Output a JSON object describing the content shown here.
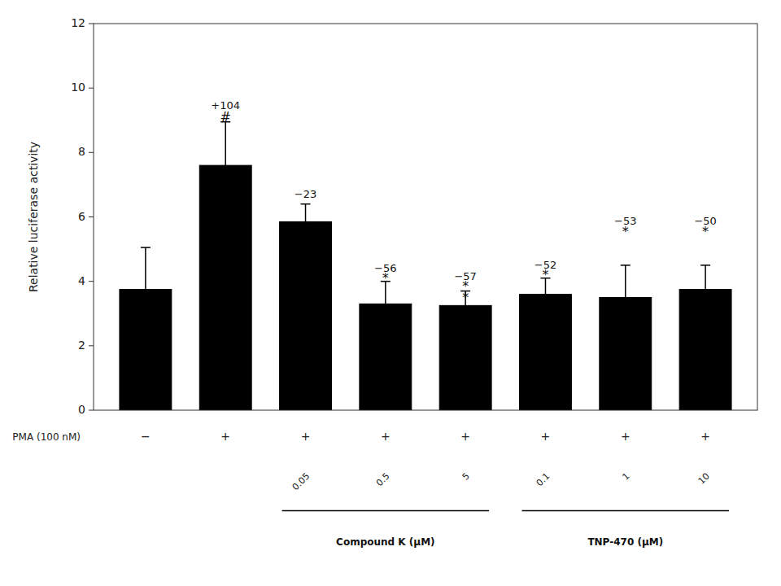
{
  "chart_data": {
    "type": "bar",
    "ylabel": "Relative luciferase activity",
    "categories": [
      null,
      null,
      "0.05",
      "0.5",
      "5",
      "0.1",
      "1",
      "10"
    ],
    "values": [
      3.75,
      7.6,
      5.85,
      3.3,
      3.25,
      3.6,
      3.5,
      3.75
    ],
    "errors": [
      1.3,
      1.35,
      0.55,
      0.7,
      0.45,
      0.5,
      1.0,
      0.75
    ],
    "color": "#000000",
    "ylim": [
      0,
      12
    ],
    "yticks": [
      0,
      2,
      4,
      6,
      8,
      10,
      12
    ],
    "grid": false,
    "pma_row_label": "PMA (100 nM)",
    "pma_signs": [
      "−",
      "+",
      "+",
      "+",
      "+",
      "+",
      "+",
      "+"
    ],
    "groups": [
      {
        "label": "Compound K (μM)",
        "members": [
          2,
          3,
          4
        ]
      },
      {
        "label": "TNP-470 (μM)",
        "members": [
          5,
          6,
          7
        ]
      }
    ],
    "annotations": [
      {
        "text": "+104",
        "category": 1,
        "y": 9.3
      },
      {
        "text": "#",
        "category": 1,
        "y": 8.9
      },
      {
        "text": "−23",
        "category": 2,
        "y": 6.55
      },
      {
        "text": "−56",
        "category": 3,
        "y": 4.25
      },
      {
        "text": "*",
        "category": 3,
        "y": 3.9
      },
      {
        "text": "−57",
        "category": 4,
        "y": 4.0
      },
      {
        "text": "*",
        "category": 4,
        "y": 3.65
      },
      {
        "text": "*",
        "category": 4,
        "y": 3.3
      },
      {
        "text": "−52",
        "category": 5,
        "y": 4.35
      },
      {
        "text": "*",
        "category": 5,
        "y": 4.0
      },
      {
        "text": "−53",
        "category": 6,
        "y": 5.7
      },
      {
        "text": "*",
        "category": 6,
        "y": 5.35
      },
      {
        "text": "−50",
        "category": 7,
        "y": 5.7
      },
      {
        "text": "*",
        "category": 7,
        "y": 5.35
      }
    ]
  }
}
